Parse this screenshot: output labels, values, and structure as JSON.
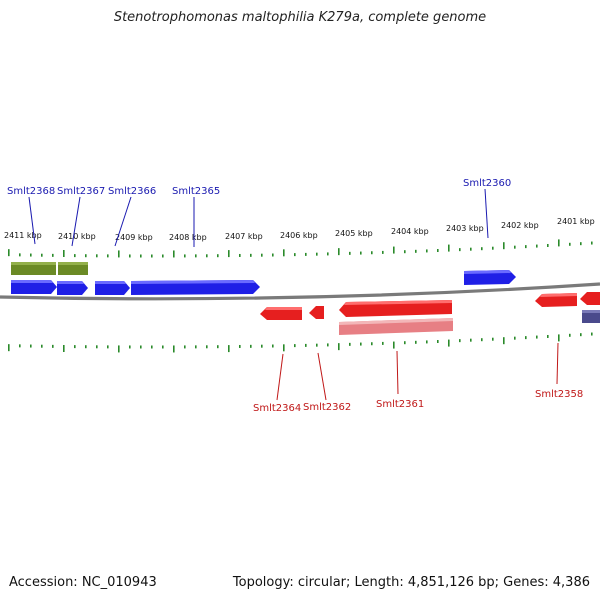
{
  "title": "Stenotrophomonas maltophilia K279a, complete genome",
  "footer": {
    "accession": "Accession: NC_010943",
    "summary": "Topology: circular; Length: 4,851,126 bp; Genes: 4,386"
  },
  "colors": {
    "forward_gene": "#1f1fe6",
    "reverse_gene": "#e61f1f",
    "reverse_gene_light": "#e77f84",
    "olive_feature": "#6b8a25",
    "purple_feature": "#4a4a8c",
    "tick": "#2a8a2a",
    "backbone": "#7a7a7a",
    "label_forward": "#1a1ab0",
    "label_reverse": "#c01818"
  },
  "scale_labels": [
    "2411 kbp",
    "2410 kbp",
    "2409 kbp",
    "2408 kbp",
    "2407 kbp",
    "2406 kbp",
    "2405 kbp",
    "2404 kbp",
    "2403 kbp",
    "2402 kbp",
    "2401 kbp"
  ],
  "genes_forward": [
    {
      "name": "Smlt2368"
    },
    {
      "name": "Smlt2367"
    },
    {
      "name": "Smlt2366"
    },
    {
      "name": "Smlt2365"
    },
    {
      "name": "Smlt2360"
    }
  ],
  "genes_reverse": [
    {
      "name": "Smlt2364"
    },
    {
      "name": "Smlt2362"
    },
    {
      "name": "Smlt2361"
    },
    {
      "name": "Smlt2358"
    }
  ]
}
